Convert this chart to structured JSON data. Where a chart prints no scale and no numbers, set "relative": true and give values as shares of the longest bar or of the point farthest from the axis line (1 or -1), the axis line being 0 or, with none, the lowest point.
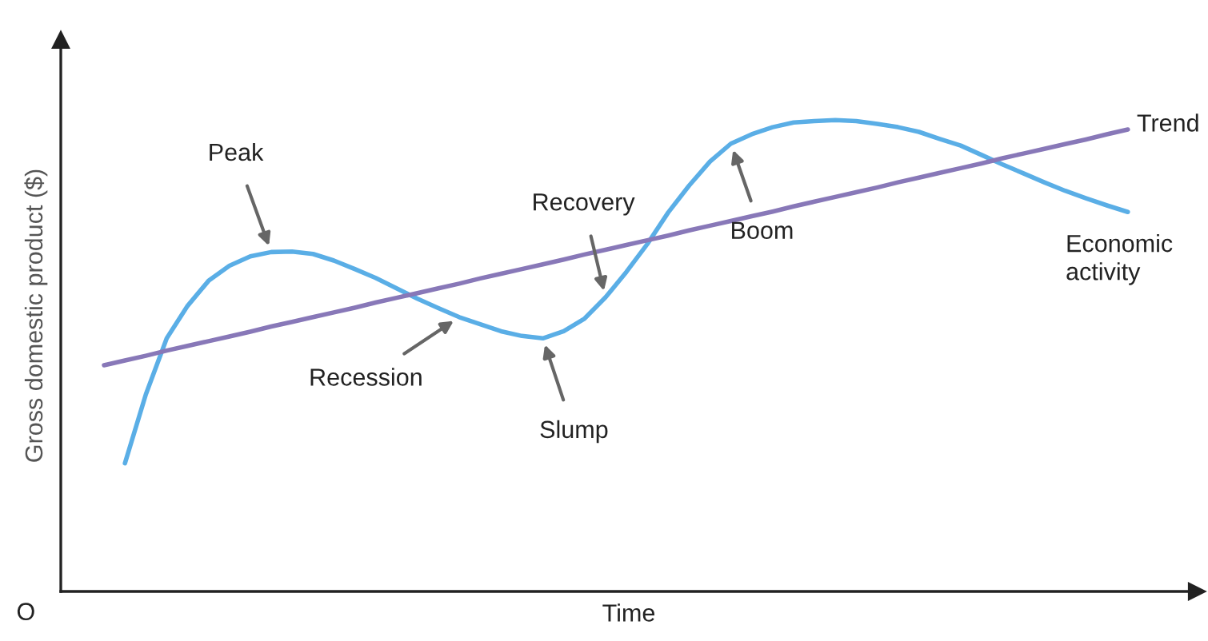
{
  "chart_data": {
    "type": "line",
    "relative": true,
    "xlabel": "Time",
    "ylabel": "Gross domestic product ($)",
    "categories": [
      null,
      null,
      null,
      null,
      null,
      null,
      null,
      null,
      null,
      null,
      null,
      null,
      null,
      null,
      null,
      null,
      null,
      null,
      null,
      null,
      null,
      null,
      null,
      null,
      null,
      null,
      null,
      null,
      null,
      null,
      null,
      null,
      null,
      null,
      null,
      null,
      null,
      null,
      null,
      null,
      null,
      null,
      null,
      null,
      null,
      null,
      null,
      null,
      null,
      null
    ],
    "series": [
      {
        "name": "Economic activity",
        "color": "#5aaee6",
        "values": [
          null,
          0.272,
          0.418,
          0.537,
          0.606,
          0.659,
          0.691,
          0.711,
          0.72,
          0.721,
          0.716,
          0.702,
          0.684,
          0.665,
          0.643,
          0.621,
          0.601,
          0.582,
          0.567,
          0.552,
          0.542,
          0.537,
          0.552,
          0.579,
          0.624,
          0.678,
          0.737,
          0.804,
          0.861,
          0.912,
          0.95,
          0.97,
          0.985,
          0.995,
          0.998,
          1.0,
          0.998,
          0.992,
          0.985,
          0.975,
          0.96,
          0.946,
          0.926,
          0.906,
          0.887,
          0.868,
          0.85,
          0.834,
          0.819,
          0.805
        ]
      },
      {
        "name": "Trend",
        "color": "#8878b8",
        "values": [
          0.48,
          0.49,
          0.5,
          0.511,
          0.521,
          0.531,
          0.541,
          0.551,
          0.562,
          0.572,
          0.582,
          0.592,
          0.602,
          0.613,
          0.623,
          0.633,
          0.643,
          0.653,
          0.664,
          0.674,
          0.684,
          0.694,
          0.704,
          0.715,
          0.725,
          0.735,
          0.745,
          0.755,
          0.766,
          0.776,
          0.786,
          0.796,
          0.806,
          0.817,
          0.827,
          0.837,
          0.847,
          0.857,
          0.868,
          0.878,
          0.888,
          0.898,
          0.908,
          0.919,
          0.929,
          0.939,
          0.949,
          0.959,
          0.97,
          0.98
        ]
      }
    ],
    "annotations": [
      "Peak",
      "Recession",
      "Slump",
      "Recovery",
      "Boom",
      "O"
    ]
  }
}
